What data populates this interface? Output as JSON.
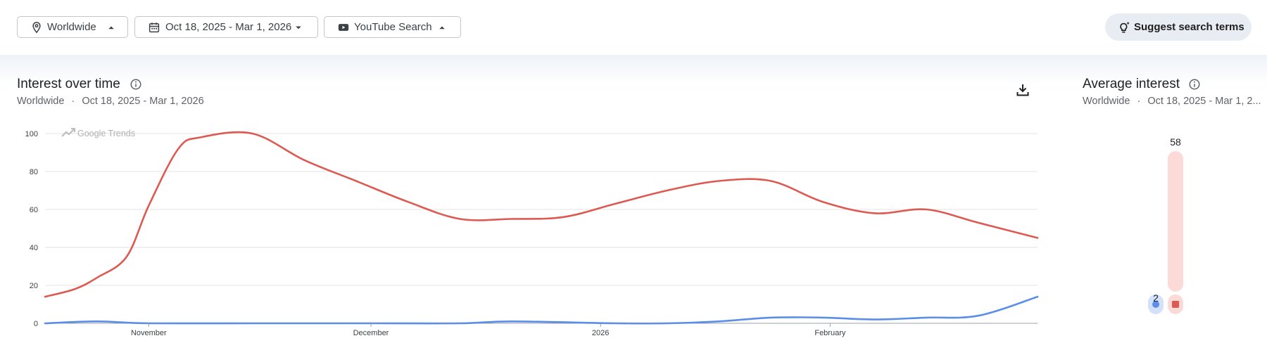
{
  "filters": {
    "region": {
      "label": "Worldwide",
      "icon": "location-pin-icon"
    },
    "date_range": {
      "label": "Oct 18, 2025 - Mar 1, 2026",
      "icon": "calendar-icon"
    },
    "property": {
      "label": "YouTube Search",
      "icon": "youtube-icon"
    },
    "suggest_label": "Suggest search terms"
  },
  "interest_panel": {
    "title": "Interest over time",
    "subtitle_region": "Worldwide",
    "subtitle_sep": "·",
    "subtitle_dates": "Oct 18, 2025 - Mar 1, 2026",
    "watermark": "Google Trends"
  },
  "average_panel": {
    "title": "Average interest",
    "subtitle_region": "Worldwide",
    "subtitle_sep": "·",
    "subtitle_dates": "Oct 18, 2025 - Mar 1, 2..."
  },
  "colors": {
    "blue": "#5a8ee8",
    "red": "#dd5a52",
    "blue_light": "#d3e1fb",
    "red_light": "#fbdad7",
    "grid": "#e3e3e3",
    "axis": "#9aa0a6"
  },
  "chart_data": [
    {
      "type": "line",
      "title": "Interest over time",
      "x_axis": {
        "start": "2025-10-18",
        "end": "2026-03-01",
        "tick_dates": [
          "2025-11-01",
          "2025-12-01",
          "2026-01-01",
          "2026-02-01"
        ],
        "tick_labels": [
          "November",
          "December",
          "2026",
          "February"
        ]
      },
      "y_ticks": [
        0,
        20,
        40,
        60,
        80,
        100
      ],
      "ylim": [
        0,
        100
      ],
      "grid": true,
      "series": [
        {
          "color": "#dd5a52",
          "x": [
            "2025-10-18",
            "2025-10-22",
            "2025-10-25",
            "2025-10-29",
            "2025-11-01",
            "2025-11-05",
            "2025-11-08",
            "2025-11-15",
            "2025-11-22",
            "2025-11-29",
            "2025-12-06",
            "2025-12-13",
            "2025-12-20",
            "2025-12-27",
            "2026-01-03",
            "2026-01-10",
            "2026-01-17",
            "2026-01-24",
            "2026-01-31",
            "2026-02-07",
            "2026-02-14",
            "2026-02-21",
            "2026-03-01"
          ],
          "values": [
            14,
            18,
            24,
            35,
            62,
            92,
            98,
            100,
            86,
            75,
            64,
            55,
            55,
            56,
            63,
            70,
            75,
            75,
            64,
            58,
            60,
            53,
            45
          ]
        },
        {
          "color": "#5a8ee8",
          "x": [
            "2025-10-18",
            "2025-10-25",
            "2025-11-01",
            "2025-11-15",
            "2025-12-01",
            "2025-12-13",
            "2025-12-20",
            "2026-01-03",
            "2026-01-10",
            "2026-01-17",
            "2026-01-24",
            "2026-01-31",
            "2026-02-07",
            "2026-02-14",
            "2026-02-21",
            "2026-03-01"
          ],
          "values": [
            0,
            1,
            0,
            0,
            0,
            0,
            1,
            0,
            0,
            1,
            3,
            3,
            2,
            3,
            4,
            14
          ]
        }
      ]
    },
    {
      "type": "bar",
      "title": "Average interest",
      "values": [
        2,
        58
      ],
      "value_labels": [
        "2",
        "58"
      ],
      "colors": [
        "#5a8ee8",
        "#dd5a52"
      ],
      "ylim": [
        0,
        58
      ]
    }
  ]
}
